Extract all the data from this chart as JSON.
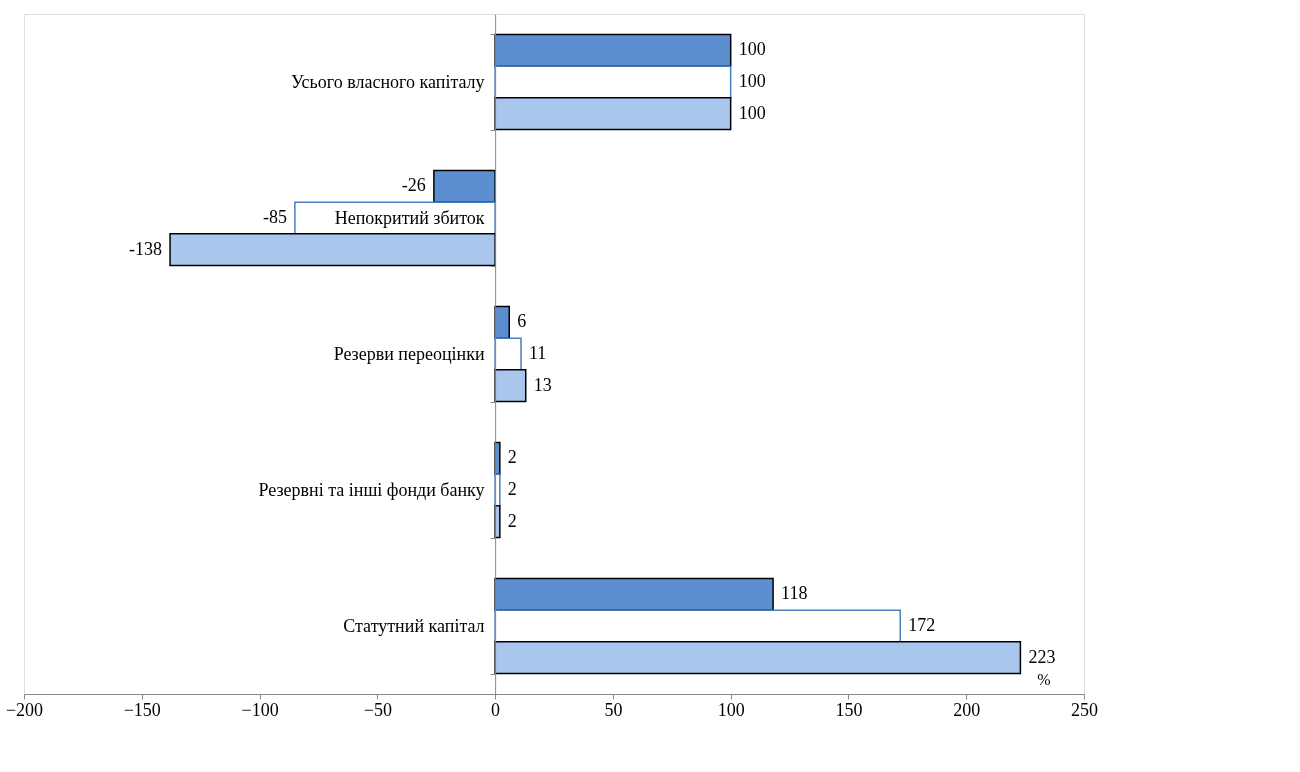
{
  "chart_data": {
    "type": "bar",
    "orientation": "horizontal",
    "categories": [
      "Усього власного капіталу",
      "Непокритий збиток",
      "Резерви переоцінки",
      "Резервні та інші фонди банку",
      "Статутний капітал"
    ],
    "series": [
      {
        "color": "#5b8fd0",
        "values": [
          100,
          -26,
          6,
          2,
          118
        ]
      },
      {
        "color": "#ffffff",
        "values": [
          100,
          -85,
          11,
          2,
          172
        ]
      },
      {
        "color": "#a9c6ec",
        "values": [
          100,
          -138,
          13,
          2,
          223
        ]
      }
    ],
    "xlim": [
      -200,
      250
    ],
    "xticks": [
      -200,
      -150,
      -100,
      -50,
      0,
      50,
      100,
      150,
      200,
      250
    ],
    "data_labels": true,
    "grid": false,
    "annotations": [
      "%"
    ]
  }
}
